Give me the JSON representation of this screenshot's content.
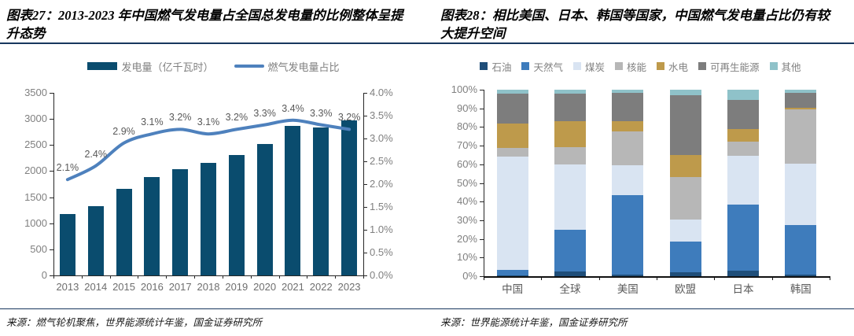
{
  "page": {
    "background": "#ffffff"
  },
  "colors": {
    "rule": "#17375E",
    "axis_line": "#262626",
    "axis_text": "#808080",
    "x_label": "#6e6e6e",
    "data_label": "#595959",
    "bar": "#0A4C6E",
    "line": "#4E81BD"
  },
  "panels": [
    {
      "id": "left",
      "title": "图表27：2013-2023 年中国燃气发电量占全国总发电量的比例整体呈提升态势",
      "source": "来源：燃气轮机聚焦，世界能源统计年鉴，国金证券研究所"
    },
    {
      "id": "right",
      "title": "图表28：相比美国、日本、韩国等国家，中国燃气发电量占比仍有较大提升空间",
      "source": "来源：世界能源统计年鉴，国金证券研究所"
    }
  ],
  "chart_data": [
    {
      "type": "combo-bar-line",
      "title": "2013-2023 年中国燃气发电量占全国总发电量的比例",
      "categories": [
        "2013",
        "2014",
        "2015",
        "2016",
        "2017",
        "2018",
        "2019",
        "2020",
        "2021",
        "2022",
        "2023"
      ],
      "bar_series": {
        "name": "发电量（亿千瓦时）",
        "axis": "left",
        "color": "#0A4C6E",
        "values": [
          1170,
          1335,
          1665,
          1880,
          2035,
          2155,
          2310,
          2520,
          2860,
          2830,
          2975
        ]
      },
      "line_series": {
        "name": "燃气发电量占比",
        "axis": "right",
        "color": "#4E81BD",
        "values": [
          2.1,
          2.4,
          2.9,
          3.1,
          3.2,
          3.1,
          3.2,
          3.3,
          3.4,
          3.3,
          3.2
        ],
        "labels": [
          "2.1%",
          "2.4%",
          "2.9%",
          "3.1%",
          "3.2%",
          "3.1%",
          "3.2%",
          "3.3%",
          "3.4%",
          "3.3%",
          "3.2%"
        ]
      },
      "left_axis": {
        "min": 0,
        "max": 3500,
        "step": 500,
        "ticks": [
          "0",
          "500",
          "1000",
          "1500",
          "2000",
          "2500",
          "3000",
          "3500"
        ]
      },
      "right_axis": {
        "min": 0,
        "max": 4,
        "step": 0.5,
        "ticks": [
          "0.0%",
          "0.5%",
          "1.0%",
          "1.5%",
          "2.0%",
          "2.5%",
          "3.0%",
          "3.5%",
          "4.0%"
        ]
      },
      "grid": false,
      "legend_position": "top"
    },
    {
      "type": "stacked-bar-100",
      "title": "各国发电量能源结构占比",
      "categories": [
        "中国",
        "全球",
        "美国",
        "欧盟",
        "日本",
        "韩国"
      ],
      "series": [
        {
          "name": "石油",
          "color": "#1F4E79",
          "values": [
            0.3,
            2.5,
            1.0,
            2.0,
            3.0,
            1.0
          ]
        },
        {
          "name": "天然气",
          "color": "#3E7CBC",
          "values": [
            3.0,
            22.5,
            42.5,
            16.5,
            35.5,
            26.5
          ]
        },
        {
          "name": "煤炭",
          "color": "#D9E4F2",
          "values": [
            61.0,
            35.0,
            16.0,
            12.0,
            26.0,
            33.0
          ]
        },
        {
          "name": "核能",
          "color": "#B7B7B7",
          "values": [
            4.5,
            9.0,
            18.0,
            22.5,
            7.5,
            29.0
          ]
        },
        {
          "name": "水电",
          "color": "#BE9A4B",
          "values": [
            13.0,
            14.0,
            5.5,
            12.0,
            7.0,
            1.0
          ]
        },
        {
          "name": "可再生能源",
          "color": "#7D7D7D",
          "values": [
            16.0,
            15.0,
            15.5,
            32.0,
            15.5,
            8.0
          ]
        },
        {
          "name": "其他",
          "color": "#8FC2C9",
          "values": [
            2.2,
            2.0,
            1.5,
            3.0,
            5.5,
            1.5
          ]
        }
      ],
      "y_axis": {
        "min": 0,
        "max": 100,
        "step": 10,
        "ticks": [
          "0%",
          "10%",
          "20%",
          "30%",
          "40%",
          "50%",
          "60%",
          "70%",
          "80%",
          "90%",
          "100%"
        ]
      },
      "grid": false,
      "legend_position": "top"
    }
  ]
}
